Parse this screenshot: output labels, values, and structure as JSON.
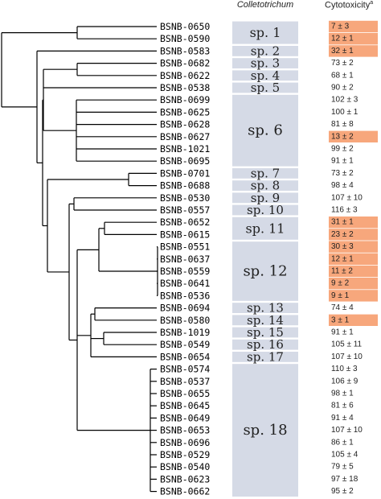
{
  "headers": {
    "genus": "Colletotrichum",
    "cytotoxicity": "Cytotoxicity",
    "cytotoxicity_sup": "a"
  },
  "colors": {
    "species_box": "#d5dae6",
    "toxic_highlight": "#f7a77c",
    "tree_line": "#000000"
  },
  "strains": [
    {
      "id": "BSNB-0650",
      "cytotoxicity": "7 ± 3",
      "highlight": true
    },
    {
      "id": "BSNB-0590",
      "cytotoxicity": "12 ± 1",
      "highlight": true
    },
    {
      "id": "BSNB-0583",
      "cytotoxicity": "32 ± 1",
      "highlight": true
    },
    {
      "id": "BSNB-0682",
      "cytotoxicity": "73 ± 2",
      "highlight": false
    },
    {
      "id": "BSNB-0622",
      "cytotoxicity": "68 ± 1",
      "highlight": false
    },
    {
      "id": "BSNB-0538",
      "cytotoxicity": "90 ± 2",
      "highlight": false
    },
    {
      "id": "BSNB-0699",
      "cytotoxicity": "102 ± 3",
      "highlight": false
    },
    {
      "id": "BSNB-0625",
      "cytotoxicity": "100 ± 1",
      "highlight": false
    },
    {
      "id": "BSNB-0628",
      "cytotoxicity": "81 ± 8",
      "highlight": false
    },
    {
      "id": "BSNB-0627",
      "cytotoxicity": "13 ± 2",
      "highlight": true
    },
    {
      "id": "BSNB-1021",
      "cytotoxicity": "99 ± 2",
      "highlight": false
    },
    {
      "id": "BSNB-0695",
      "cytotoxicity": "91 ± 1",
      "highlight": false
    },
    {
      "id": "BSNB-0701",
      "cytotoxicity": "73 ± 2",
      "highlight": false
    },
    {
      "id": "BSNB-0688",
      "cytotoxicity": "98 ± 4",
      "highlight": false
    },
    {
      "id": "BSNB-0530",
      "cytotoxicity": "107 ± 10",
      "highlight": false
    },
    {
      "id": "BSNB-0557",
      "cytotoxicity": "116 ± 3",
      "highlight": false
    },
    {
      "id": "BSNB-0652",
      "cytotoxicity": "31 ± 1",
      "highlight": true
    },
    {
      "id": "BSNB-0615",
      "cytotoxicity": "23 ± 2",
      "highlight": true
    },
    {
      "id": "BSNB-0551",
      "cytotoxicity": "30 ± 3",
      "highlight": true
    },
    {
      "id": "BSNB-0637",
      "cytotoxicity": "12 ± 1",
      "highlight": true
    },
    {
      "id": "BSNB-0559",
      "cytotoxicity": "11 ± 2",
      "highlight": true
    },
    {
      "id": "BSNB-0641",
      "cytotoxicity": "9 ± 2",
      "highlight": true
    },
    {
      "id": "BSNB-0536",
      "cytotoxicity": "9 ± 1",
      "highlight": true
    },
    {
      "id": "BSNB-0694",
      "cytotoxicity": "74 ± 4",
      "highlight": false
    },
    {
      "id": "BSNB-0580",
      "cytotoxicity": "3 ± 1",
      "highlight": true
    },
    {
      "id": "BSNB-1019",
      "cytotoxicity": "91 ± 1",
      "highlight": false
    },
    {
      "id": "BSNB-0549",
      "cytotoxicity": "105 ± 11",
      "highlight": false
    },
    {
      "id": "BSNB-0654",
      "cytotoxicity": "107 ± 10",
      "highlight": false
    },
    {
      "id": "BSNB-0574",
      "cytotoxicity": "110 ± 3",
      "highlight": false
    },
    {
      "id": "BSNB-0537",
      "cytotoxicity": "106 ± 9",
      "highlight": false
    },
    {
      "id": "BSNB-0655",
      "cytotoxicity": "98 ± 1",
      "highlight": false
    },
    {
      "id": "BSNB-0645",
      "cytotoxicity": "81 ± 6",
      "highlight": false
    },
    {
      "id": "BSNB-0649",
      "cytotoxicity": "91 ± 4",
      "highlight": false
    },
    {
      "id": "BSNB-0653",
      "cytotoxicity": "107 ± 10",
      "highlight": false
    },
    {
      "id": "BSNB-0696",
      "cytotoxicity": "86 ± 1",
      "highlight": false
    },
    {
      "id": "BSNB-0529",
      "cytotoxicity": "105 ± 4",
      "highlight": false
    },
    {
      "id": "BSNB-0540",
      "cytotoxicity": "79 ± 5",
      "highlight": false
    },
    {
      "id": "BSNB-0623",
      "cytotoxicity": "97 ± 18",
      "highlight": false
    },
    {
      "id": "BSNB-0662",
      "cytotoxicity": "95 ± 2",
      "highlight": false
    }
  ],
  "species": [
    {
      "label": "sp. 1",
      "first": 0,
      "last": 1
    },
    {
      "label": "sp. 2",
      "first": 2,
      "last": 2
    },
    {
      "label": "sp. 3",
      "first": 3,
      "last": 3
    },
    {
      "label": "sp. 4",
      "first": 4,
      "last": 4
    },
    {
      "label": "sp. 5",
      "first": 5,
      "last": 5
    },
    {
      "label": "sp. 6",
      "first": 6,
      "last": 11
    },
    {
      "label": "sp. 7",
      "first": 12,
      "last": 12
    },
    {
      "label": "sp. 8",
      "first": 13,
      "last": 13
    },
    {
      "label": "sp. 9",
      "first": 14,
      "last": 14
    },
    {
      "label": "sp. 10",
      "first": 15,
      "last": 15
    },
    {
      "label": "sp. 11",
      "first": 16,
      "last": 17
    },
    {
      "label": "sp. 12",
      "first": 18,
      "last": 22
    },
    {
      "label": "sp. 13",
      "first": 23,
      "last": 23
    },
    {
      "label": "sp. 14",
      "first": 24,
      "last": 24
    },
    {
      "label": "sp. 15",
      "first": 25,
      "last": 25
    },
    {
      "label": "sp. 16",
      "first": 26,
      "last": 26
    },
    {
      "label": "sp. 17",
      "first": 27,
      "last": 27
    },
    {
      "label": "sp. 18",
      "first": 28,
      "last": 38
    }
  ]
}
